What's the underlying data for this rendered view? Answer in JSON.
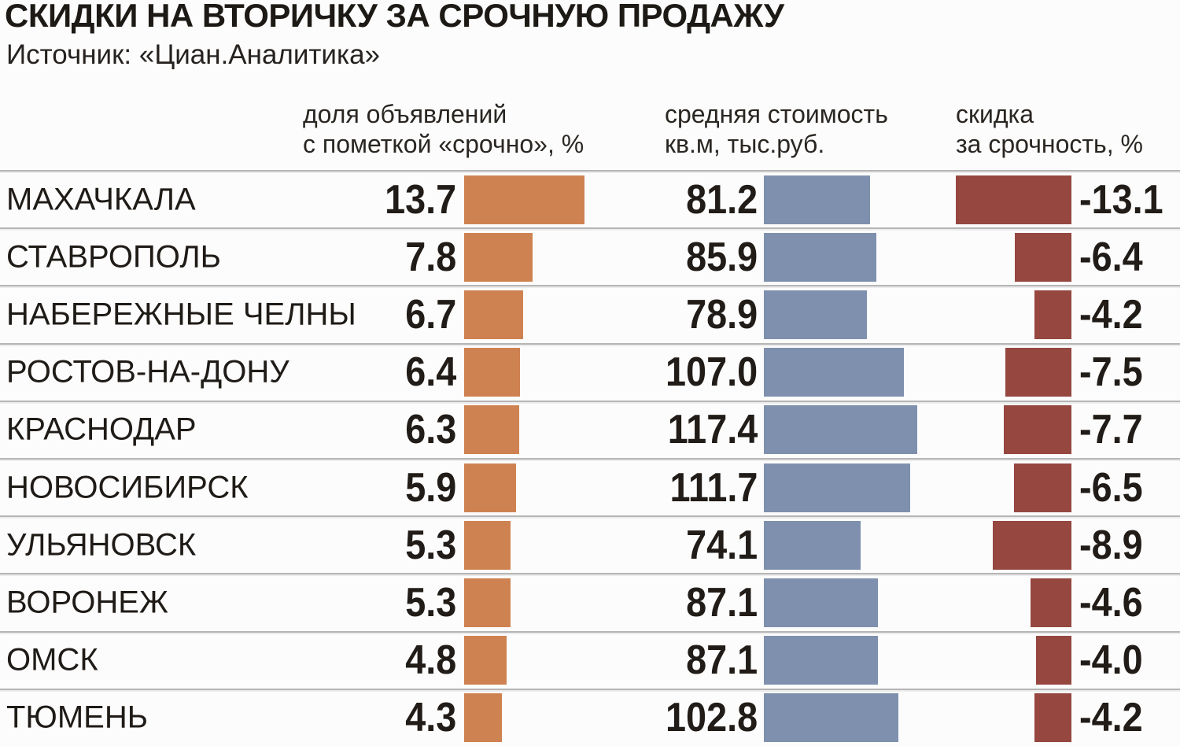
{
  "title": "СКИДКИ НА ВТОРИЧКУ ЗА СРОЧНУЮ ПРОДАЖУ",
  "source": "Источник: «Циан.Аналитика»",
  "columns": {
    "share": {
      "line1": "доля объявлений",
      "line2": "с пометкой «срочно», %"
    },
    "price": {
      "line1": "средняя стоимость",
      "line2": "кв.м, тыс.руб."
    },
    "discount": {
      "line1": "скидка",
      "line2": "за срочность, %"
    }
  },
  "colors": {
    "share_bar": "#cf8251",
    "price_bar": "#7e90ae",
    "discount_bar": "#954740",
    "divider": "#b5b5b5",
    "background": "#fcfcfc",
    "text": "#1f1b17"
  },
  "rows": [
    {
      "city": "МАХАЧКАЛА",
      "share": "13.7",
      "price": "81.2",
      "discount": "-13.1"
    },
    {
      "city": "СТАВРОПОЛЬ",
      "share": "7.8",
      "price": "85.9",
      "discount": "-6.4"
    },
    {
      "city": "НАБЕРЕЖНЫЕ ЧЕЛНЫ",
      "share": "6.7",
      "price": "78.9",
      "discount": "-4.2"
    },
    {
      "city": "РОСТОВ-НА-ДОНУ",
      "share": "6.4",
      "price": "107.0",
      "discount": "-7.5"
    },
    {
      "city": "КРАСНОДАР",
      "share": "6.3",
      "price": "117.4",
      "discount": "-7.7"
    },
    {
      "city": "НОВОСИБИРСК",
      "share": "5.9",
      "price": "111.7",
      "discount": "-6.5"
    },
    {
      "city": "УЛЬЯНОВСК",
      "share": "5.3",
      "price": "74.1",
      "discount": "-8.9"
    },
    {
      "city": "ВОРОНЕЖ",
      "share": "5.3",
      "price": "87.1",
      "discount": "-4.6"
    },
    {
      "city": "ОМСК",
      "share": "4.8",
      "price": "87.1",
      "discount": "-4.0"
    },
    {
      "city": "ТЮМЕНЬ",
      "share": "4.3",
      "price": "102.8",
      "discount": "-4.2"
    }
  ],
  "chart_data": {
    "type": "bar",
    "title": "СКИДКИ НА ВТОРИЧКУ ЗА СРОЧНУЮ ПРОДАЖУ",
    "subtitle": "Источник: «Циан.Аналитика»",
    "orientation": "horizontal",
    "categories": [
      "МАХАЧКАЛА",
      "СТАВРОПОЛЬ",
      "НАБЕРЕЖНЫЕ ЧЕЛНЫ",
      "РОСТОВ-НА-ДОНУ",
      "КРАСНОДАР",
      "НОВОСИБИРСК",
      "УЛЬЯНОВСК",
      "ВОРОНЕЖ",
      "ОМСК",
      "ТЮМЕНЬ"
    ],
    "series": [
      {
        "name": "доля объявлений с пометкой «срочно», %",
        "color": "#cf8251",
        "values": [
          13.7,
          7.8,
          6.7,
          6.4,
          6.3,
          5.9,
          5.3,
          5.3,
          4.8,
          4.3
        ]
      },
      {
        "name": "средняя стоимость кв.м, тыс.руб.",
        "color": "#7e90ae",
        "values": [
          81.2,
          85.9,
          78.9,
          107.0,
          117.4,
          111.7,
          74.1,
          87.1,
          87.1,
          102.8
        ]
      },
      {
        "name": "скидка за срочность, %",
        "color": "#954740",
        "values": [
          -13.1,
          -6.4,
          -4.2,
          -7.5,
          -7.7,
          -6.5,
          -8.9,
          -4.6,
          -4.0,
          -4.2
        ]
      }
    ],
    "layout_hints": {
      "legend": "column headers above each bar group",
      "grid": "horizontal row dividers only",
      "value_labels": "share and price left of bars; discount right of bars; discount bars right-aligned"
    }
  }
}
